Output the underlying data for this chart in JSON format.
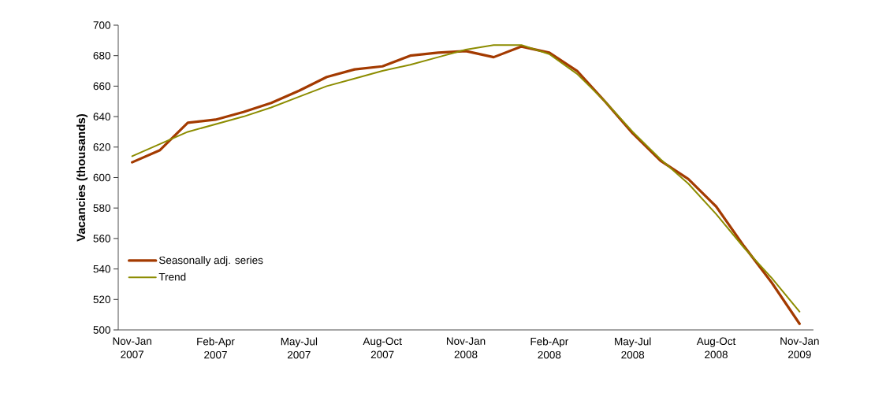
{
  "chart_data": {
    "type": "line",
    "ylabel": "Vacancies (thousands)",
    "categories": [
      "Nov-Jan 2007",
      null,
      null,
      "Feb-Apr 2007",
      null,
      null,
      "May-Jul 2007",
      null,
      null,
      "Aug-Oct 2007",
      null,
      null,
      "Nov-Jan 2008",
      null,
      null,
      "Feb-Apr 2008",
      null,
      null,
      "May-Jul 2008",
      null,
      null,
      "Aug-Oct 2008",
      null,
      null,
      "Nov-Jan 2009"
    ],
    "series": [
      {
        "name": "Seasonally adj. series",
        "color": "#a33a00",
        "values": [
          610,
          618,
          636,
          638,
          643,
          649,
          657,
          666,
          671,
          673,
          680,
          682,
          683,
          679,
          686,
          682,
          670,
          650,
          629,
          611,
          599,
          581,
          555,
          531,
          504
        ]
      },
      {
        "name": "Trend",
        "color": "#8c8c00",
        "values": [
          614,
          622,
          630,
          635,
          640,
          646,
          653,
          660,
          665,
          670,
          674,
          679,
          684,
          687,
          687,
          681,
          668,
          650,
          630,
          612,
          596,
          576,
          554,
          534,
          512
        ]
      }
    ],
    "ylim": [
      500,
      700
    ],
    "yticks": [
      500,
      520,
      540,
      560,
      580,
      600,
      620,
      640,
      660,
      680,
      700
    ],
    "legend": "left",
    "grid": false,
    "marker": "none",
    "line_style": "solid"
  }
}
